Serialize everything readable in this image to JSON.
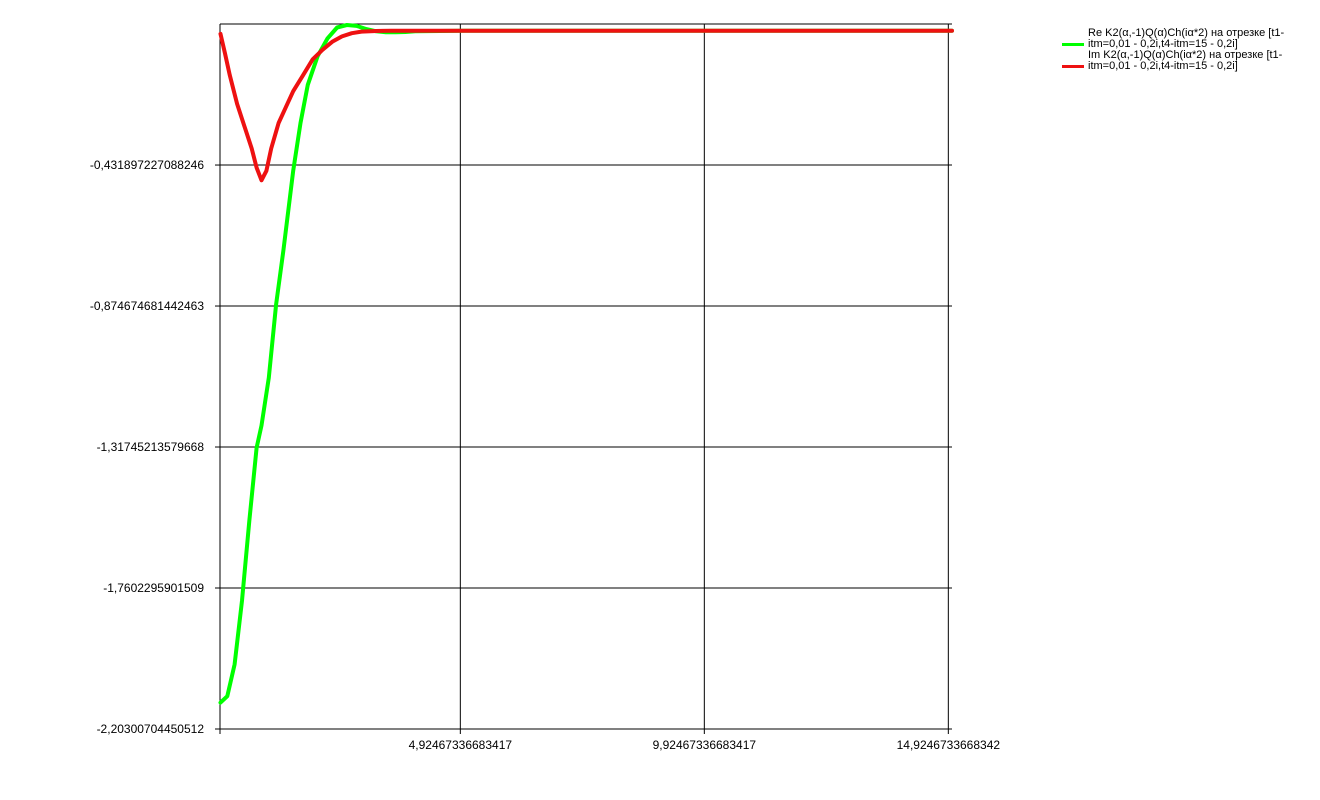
{
  "chart_data": {
    "type": "line",
    "title": "",
    "xlabel": "",
    "ylabel": "",
    "xlim": [
      0,
      15.0
    ],
    "ylim": [
      -2.20300704450512,
      0.011
    ],
    "grid": true,
    "legend_position": "top-right",
    "y_ticks": [
      {
        "value": -0.431897227088246,
        "label": "-0,431897227088246"
      },
      {
        "value": -0.874674681442463,
        "label": "-0,874674681442463"
      },
      {
        "value": -1.31745213579668,
        "label": "-1,31745213579668"
      },
      {
        "value": -1.7602295901509,
        "label": "-1,7602295901509"
      },
      {
        "value": -2.20300704450512,
        "label": "-2,20300704450512"
      }
    ],
    "x_ticks": [
      {
        "value": 4.92467336683417,
        "label": "4,92467336683417"
      },
      {
        "value": 9.92467336683417,
        "label": "9,92467336683417"
      },
      {
        "value": 14.9246733668342,
        "label": "14,9246733668342"
      }
    ],
    "series": [
      {
        "name": "Re K2(α,-1)Q(α)Ch(iα*2) на отрезке [t1-itm=0,01 - 0,2i,t4-itm=15 - 0,2i]",
        "color": "#00ff00",
        "x": [
          0.01,
          0.15,
          0.3,
          0.45,
          0.6,
          0.75,
          0.85,
          1.0,
          1.15,
          1.3,
          1.5,
          1.65,
          1.8,
          2.0,
          2.2,
          2.4,
          2.6,
          2.8,
          3.0,
          3.2,
          3.4,
          3.6,
          3.8,
          4.0,
          4.5,
          5.0,
          6.0,
          7.0,
          8.0,
          9.0,
          10.0,
          11.0,
          12.0,
          13.0,
          14.0,
          15.0
        ],
        "y": [
          -2.12,
          -2.1,
          -2.0,
          -1.8,
          -1.55,
          -1.32,
          -1.25,
          -1.1,
          -0.87,
          -0.7,
          -0.45,
          -0.3,
          -0.18,
          -0.09,
          -0.035,
          0.0,
          0.008,
          0.005,
          -0.005,
          -0.012,
          -0.015,
          -0.015,
          -0.014,
          -0.012,
          -0.011,
          -0.01,
          -0.01,
          -0.01,
          -0.01,
          -0.01,
          -0.01,
          -0.01,
          -0.01,
          -0.01,
          -0.01,
          -0.01
        ]
      },
      {
        "name": "Im K2(α,-1)Q(α)Ch(iα*2) на отрезке [t1-itm=0,01 - 0,2i,t4-itm=15 - 0,2i]",
        "color": "#ee1111",
        "x": [
          0.01,
          0.1,
          0.2,
          0.35,
          0.5,
          0.65,
          0.75,
          0.85,
          0.95,
          1.05,
          1.2,
          1.35,
          1.5,
          1.7,
          1.9,
          2.1,
          2.3,
          2.5,
          2.7,
          2.9,
          3.2,
          3.5,
          4.0,
          5.0,
          6.0,
          7.0,
          8.0,
          9.0,
          10.0,
          11.0,
          12.0,
          13.0,
          14.0,
          15.0
        ],
        "y": [
          -0.02,
          -0.08,
          -0.15,
          -0.24,
          -0.31,
          -0.38,
          -0.44,
          -0.48,
          -0.45,
          -0.38,
          -0.3,
          -0.25,
          -0.2,
          -0.15,
          -0.1,
          -0.07,
          -0.045,
          -0.028,
          -0.018,
          -0.013,
          -0.011,
          -0.01,
          -0.01,
          -0.01,
          -0.01,
          -0.01,
          -0.01,
          -0.01,
          -0.01,
          -0.01,
          -0.01,
          -0.01,
          -0.01,
          -0.01
        ]
      }
    ]
  }
}
